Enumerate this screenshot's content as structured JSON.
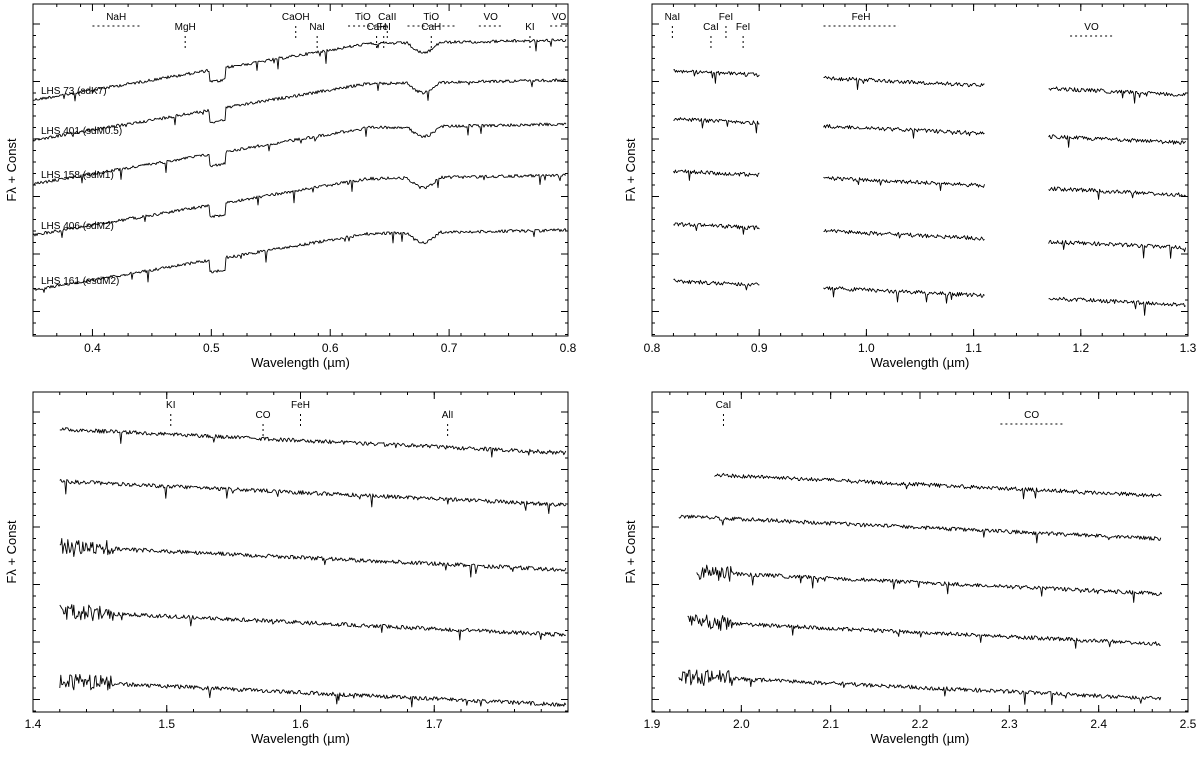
{
  "chart_data": [
    {
      "type": "line",
      "xlabel": "Wavelength (µm)",
      "ylabel": "Fλ + Const",
      "xlim": [
        0.35,
        0.8
      ],
      "xticks": [
        0.4,
        0.5,
        0.6,
        0.7,
        0.8
      ],
      "series": [
        {
          "name": "LHS 73 (sdK7)",
          "offset": 4
        },
        {
          "name": "LHS 401 (sdM0.5)",
          "offset": 3
        },
        {
          "name": "LHS 158 (sdM1)",
          "offset": 2
        },
        {
          "name": "LHS 406 (sdM2)",
          "offset": 1
        },
        {
          "name": "LHS 161 (esdM2)",
          "offset": 0
        }
      ],
      "annotations": [
        {
          "label": "NaH",
          "x1": 0.4,
          "x2": 0.44,
          "kind": "band"
        },
        {
          "label": "MgH",
          "x": 0.478,
          "kind": "line"
        },
        {
          "label": "CaOH",
          "x": 0.571,
          "kind": "line"
        },
        {
          "label": "NaI",
          "x": 0.589,
          "kind": "line"
        },
        {
          "label": "TiO",
          "x1": 0.615,
          "x2": 0.64,
          "kind": "band"
        },
        {
          "label": "CaH",
          "x": 0.639,
          "kind": "line"
        },
        {
          "label": "CaII",
          "x": 0.648,
          "kind": "line"
        },
        {
          "label": "FeI",
          "x": 0.645,
          "kind": "line"
        },
        {
          "label": "TiO",
          "x1": 0.665,
          "x2": 0.705,
          "kind": "band"
        },
        {
          "label": "CaH",
          "x": 0.685,
          "kind": "line"
        },
        {
          "label": "VO",
          "x1": 0.725,
          "x2": 0.745,
          "kind": "band"
        },
        {
          "label": "KI",
          "x": 0.768,
          "kind": "line"
        },
        {
          "label": "VO",
          "x1": 0.785,
          "x2": 0.8,
          "kind": "band"
        }
      ]
    },
    {
      "type": "line",
      "xlabel": "Wavelength (µm)",
      "ylabel": "Fλ + Const",
      "xlim": [
        0.8,
        1.3
      ],
      "xticks": [
        0.8,
        0.9,
        1.0,
        1.1,
        1.2,
        1.3
      ],
      "segments": [
        [
          0.82,
          0.9
        ],
        [
          0.96,
          1.11
        ],
        [
          1.17,
          1.3
        ]
      ],
      "annotations": [
        {
          "label": "NaI",
          "x": 0.819,
          "kind": "line"
        },
        {
          "label": "CaI",
          "x": 0.855,
          "kind": "line"
        },
        {
          "label": "FeI",
          "x": 0.869,
          "kind": "line"
        },
        {
          "label": "FeI",
          "x": 0.885,
          "kind": "line"
        },
        {
          "label": "FeH",
          "x1": 0.96,
          "x2": 1.03,
          "kind": "band"
        },
        {
          "label": "VO",
          "x1": 1.19,
          "x2": 1.23,
          "kind": "band"
        }
      ]
    },
    {
      "type": "line",
      "xlabel": "Wavelength (µm)",
      "ylabel": "Fλ + Const",
      "xlim": [
        1.4,
        1.8
      ],
      "xticks": [
        1.4,
        1.5,
        1.6,
        1.7
      ],
      "annotations": [
        {
          "label": "KI",
          "x": 1.503,
          "kind": "line"
        },
        {
          "label": "CO",
          "x": 1.572,
          "kind": "line"
        },
        {
          "label": "FeH",
          "x": 1.6,
          "kind": "line"
        },
        {
          "label": "AlI",
          "x": 1.71,
          "kind": "line"
        }
      ]
    },
    {
      "type": "line",
      "xlabel": "Wavelength (µm)",
      "ylabel": "Fλ + Const",
      "xlim": [
        1.9,
        2.5
      ],
      "xticks": [
        1.9,
        2.0,
        2.1,
        2.2,
        2.3,
        2.4,
        2.5
      ],
      "annotations": [
        {
          "label": "CaI",
          "x": 1.98,
          "kind": "line"
        },
        {
          "label": "CO",
          "x1": 2.29,
          "x2": 2.36,
          "kind": "band"
        }
      ]
    }
  ]
}
